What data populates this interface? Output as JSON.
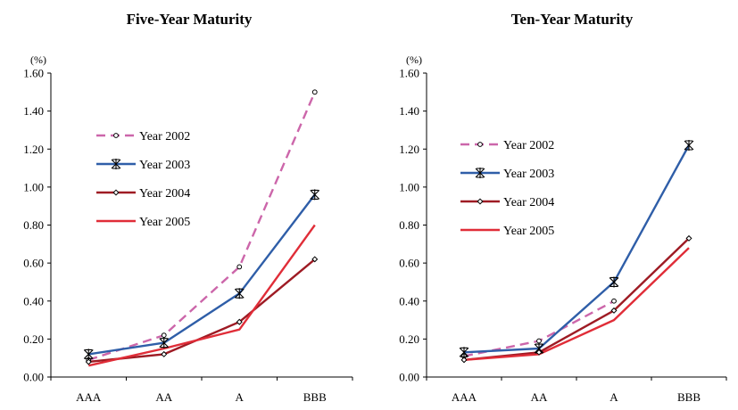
{
  "chart_data": [
    {
      "type": "line",
      "title": "Five-Year Maturity",
      "unit_label": "(%)",
      "categories": [
        "AAA",
        "AA",
        "A",
        "BBB"
      ],
      "ylim": [
        0,
        1.6
      ],
      "yticks": [
        "0.00",
        "0.20",
        "0.40",
        "0.60",
        "0.80",
        "1.00",
        "1.20",
        "1.40",
        "1.60"
      ],
      "grid": false,
      "legend_position": "upper-left",
      "series": [
        {
          "name": "Year 2002",
          "color": "#cc66aa",
          "dash": true,
          "marker": "circle",
          "values": [
            0.09,
            0.22,
            0.58,
            1.5
          ]
        },
        {
          "name": "Year 2003",
          "color": "#2f5ea8",
          "dash": false,
          "marker": "asterisk",
          "values": [
            0.12,
            0.18,
            0.44,
            0.96
          ]
        },
        {
          "name": "Year 2004",
          "color": "#9e1b24",
          "dash": false,
          "marker": "diamond",
          "values": [
            0.08,
            0.12,
            0.29,
            0.62
          ]
        },
        {
          "name": "Year 2005",
          "color": "#e02d38",
          "dash": false,
          "marker": "none",
          "values": [
            0.06,
            0.15,
            0.25,
            0.8
          ]
        }
      ]
    },
    {
      "type": "line",
      "title": "Ten-Year Maturity",
      "unit_label": "(%)",
      "categories": [
        "AAA",
        "AA",
        "A",
        "BBB"
      ],
      "ylim": [
        0,
        1.6
      ],
      "yticks": [
        "0.00",
        "0.20",
        "0.40",
        "0.60",
        "0.80",
        "1.00",
        "1.20",
        "1.40",
        "1.60"
      ],
      "grid": false,
      "legend_position": "upper-left",
      "series": [
        {
          "name": "Year 2002",
          "color": "#cc66aa",
          "dash": true,
          "marker": "circle",
          "values": [
            0.11,
            0.19,
            0.4,
            null
          ]
        },
        {
          "name": "Year 2003",
          "color": "#2f5ea8",
          "dash": false,
          "marker": "asterisk",
          "values": [
            0.13,
            0.15,
            0.5,
            1.22
          ]
        },
        {
          "name": "Year 2004",
          "color": "#9e1b24",
          "dash": false,
          "marker": "diamond",
          "values": [
            0.09,
            0.13,
            0.35,
            0.73
          ]
        },
        {
          "name": "Year 2005",
          "color": "#e02d38",
          "dash": false,
          "marker": "none",
          "values": [
            0.09,
            0.12,
            0.3,
            0.68
          ]
        }
      ]
    }
  ]
}
